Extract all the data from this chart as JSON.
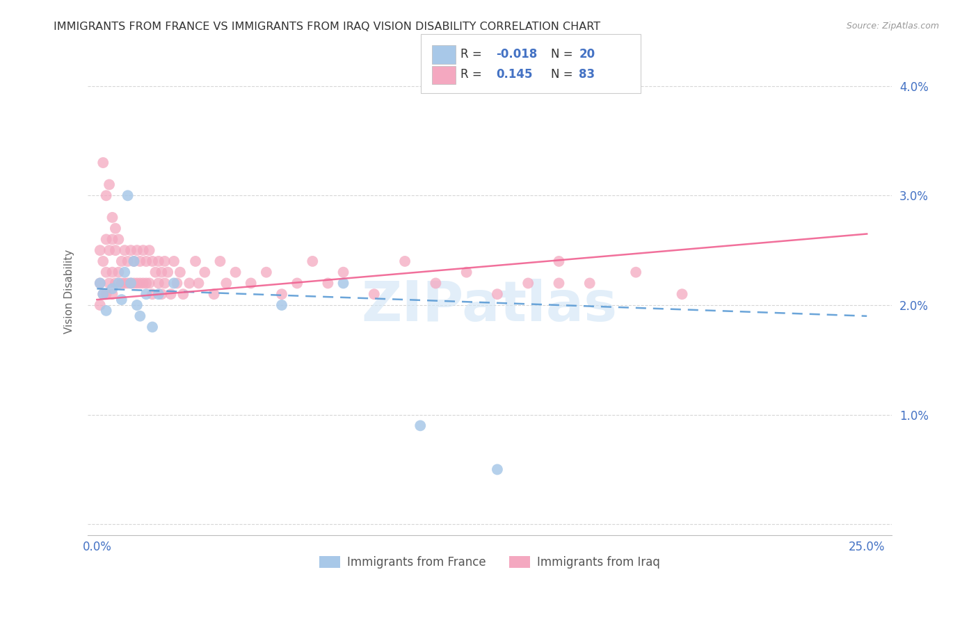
{
  "title": "IMMIGRANTS FROM FRANCE VS IMMIGRANTS FROM IRAQ VISION DISABILITY CORRELATION CHART",
  "source": "Source: ZipAtlas.com",
  "ylabel": "Vision Disability",
  "legend_r_france": "-0.018",
  "legend_n_france": "20",
  "legend_r_iraq": "0.145",
  "legend_n_iraq": "83",
  "color_france": "#a8c8e8",
  "color_iraq": "#f4a8c0",
  "line_france_color": "#5b9bd5",
  "line_iraq_color": "#f06090",
  "watermark_color": "#d0e4f5",
  "background_color": "#ffffff",
  "france_x": [
    0.001,
    0.002,
    0.003,
    0.005,
    0.007,
    0.008,
    0.009,
    0.01,
    0.011,
    0.012,
    0.013,
    0.014,
    0.016,
    0.018,
    0.02,
    0.025,
    0.06,
    0.08,
    0.105,
    0.13
  ],
  "france_y": [
    0.022,
    0.021,
    0.0195,
    0.0215,
    0.022,
    0.0205,
    0.023,
    0.03,
    0.022,
    0.024,
    0.02,
    0.019,
    0.021,
    0.018,
    0.021,
    0.022,
    0.02,
    0.022,
    0.009,
    0.005
  ],
  "iraq_x": [
    0.001,
    0.001,
    0.001,
    0.002,
    0.002,
    0.003,
    0.003,
    0.003,
    0.004,
    0.004,
    0.005,
    0.005,
    0.005,
    0.006,
    0.006,
    0.007,
    0.007,
    0.008,
    0.008,
    0.009,
    0.009,
    0.01,
    0.01,
    0.011,
    0.011,
    0.012,
    0.012,
    0.013,
    0.013,
    0.014,
    0.014,
    0.015,
    0.015,
    0.016,
    0.016,
    0.017,
    0.017,
    0.018,
    0.018,
    0.019,
    0.02,
    0.02,
    0.021,
    0.021,
    0.022,
    0.022,
    0.023,
    0.024,
    0.025,
    0.026,
    0.027,
    0.028,
    0.03,
    0.032,
    0.033,
    0.035,
    0.038,
    0.04,
    0.042,
    0.045,
    0.05,
    0.055,
    0.06,
    0.065,
    0.07,
    0.075,
    0.08,
    0.09,
    0.1,
    0.11,
    0.12,
    0.13,
    0.14,
    0.15,
    0.16,
    0.175,
    0.19,
    0.002,
    0.003,
    0.004,
    0.005,
    0.006,
    0.15
  ],
  "iraq_y": [
    0.025,
    0.022,
    0.02,
    0.024,
    0.021,
    0.026,
    0.023,
    0.021,
    0.025,
    0.022,
    0.026,
    0.023,
    0.021,
    0.025,
    0.022,
    0.026,
    0.023,
    0.024,
    0.022,
    0.025,
    0.022,
    0.024,
    0.022,
    0.025,
    0.022,
    0.024,
    0.022,
    0.025,
    0.022,
    0.024,
    0.022,
    0.025,
    0.022,
    0.024,
    0.022,
    0.025,
    0.022,
    0.024,
    0.021,
    0.023,
    0.024,
    0.022,
    0.023,
    0.021,
    0.024,
    0.022,
    0.023,
    0.021,
    0.024,
    0.022,
    0.023,
    0.021,
    0.022,
    0.024,
    0.022,
    0.023,
    0.021,
    0.024,
    0.022,
    0.023,
    0.022,
    0.023,
    0.021,
    0.022,
    0.024,
    0.022,
    0.023,
    0.021,
    0.024,
    0.022,
    0.023,
    0.021,
    0.022,
    0.024,
    0.022,
    0.023,
    0.021,
    0.033,
    0.03,
    0.031,
    0.028,
    0.027,
    0.022
  ],
  "france_line_x0": 0.0,
  "france_line_x1": 0.25,
  "france_line_y0": 0.0215,
  "france_line_y1": 0.019,
  "iraq_line_x0": 0.0,
  "iraq_line_x1": 0.25,
  "iraq_line_y0": 0.0205,
  "iraq_line_y1": 0.0265,
  "xlim": [
    -0.003,
    0.258
  ],
  "ylim": [
    -0.001,
    0.0435
  ]
}
